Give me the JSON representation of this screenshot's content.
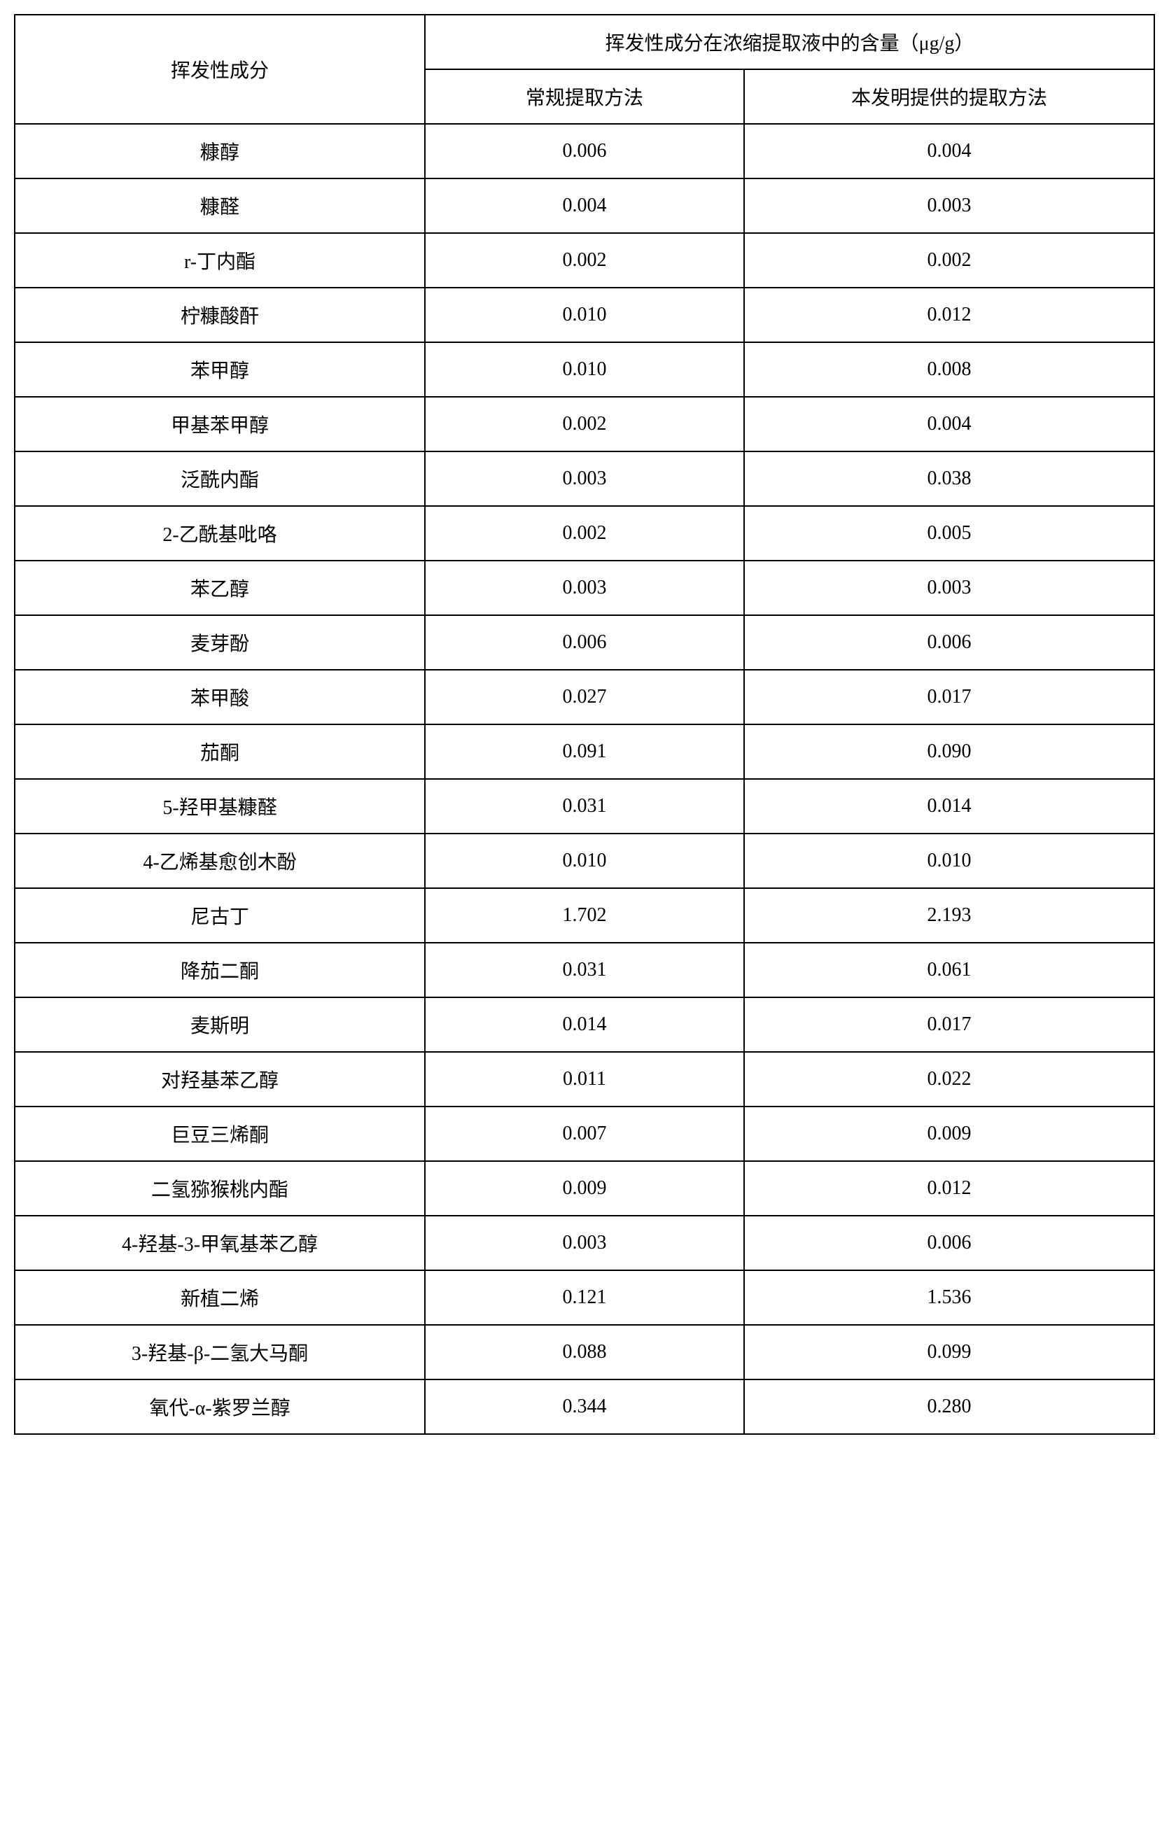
{
  "table": {
    "header": {
      "component_label": "挥发性成分",
      "content_label": "挥发性成分在浓缩提取液中的含量（μg/g）",
      "method1_label": "常规提取方法",
      "method2_label": "本发明提供的提取方法"
    },
    "rows": [
      {
        "name": "糠醇",
        "v1": "0.006",
        "v2": "0.004"
      },
      {
        "name": "糠醛",
        "v1": "0.004",
        "v2": "0.003"
      },
      {
        "name": "r-丁内酯",
        "v1": "0.002",
        "v2": "0.002"
      },
      {
        "name": "柠糠酸酐",
        "v1": "0.010",
        "v2": "0.012"
      },
      {
        "name": "苯甲醇",
        "v1": "0.010",
        "v2": "0.008"
      },
      {
        "name": "甲基苯甲醇",
        "v1": "0.002",
        "v2": "0.004"
      },
      {
        "name": "泛酰内酯",
        "v1": "0.003",
        "v2": "0.038"
      },
      {
        "name": "2-乙酰基吡咯",
        "v1": "0.002",
        "v2": "0.005"
      },
      {
        "name": "苯乙醇",
        "v1": "0.003",
        "v2": "0.003"
      },
      {
        "name": "麦芽酚",
        "v1": "0.006",
        "v2": "0.006"
      },
      {
        "name": "苯甲酸",
        "v1": "0.027",
        "v2": "0.017"
      },
      {
        "name": "茄酮",
        "v1": "0.091",
        "v2": "0.090"
      },
      {
        "name": "5-羟甲基糠醛",
        "v1": "0.031",
        "v2": "0.014"
      },
      {
        "name": "4-乙烯基愈创木酚",
        "v1": "0.010",
        "v2": "0.010"
      },
      {
        "name": "尼古丁",
        "v1": "1.702",
        "v2": "2.193"
      },
      {
        "name": "降茄二酮",
        "v1": "0.031",
        "v2": "0.061"
      },
      {
        "name": "麦斯明",
        "v1": "0.014",
        "v2": "0.017"
      },
      {
        "name": "对羟基苯乙醇",
        "v1": "0.011",
        "v2": "0.022"
      },
      {
        "name": "巨豆三烯酮",
        "v1": "0.007",
        "v2": "0.009"
      },
      {
        "name": "二氢猕猴桃内酯",
        "v1": "0.009",
        "v2": "0.012"
      },
      {
        "name": "4-羟基-3-甲氧基苯乙醇",
        "v1": "0.003",
        "v2": "0.006"
      },
      {
        "name": "新植二烯",
        "v1": "0.121",
        "v2": "1.536"
      },
      {
        "name": "3-羟基-β-二氢大马酮",
        "v1": "0.088",
        "v2": "0.099"
      },
      {
        "name": "氧代-α-紫罗兰醇",
        "v1": "0.344",
        "v2": "0.280"
      }
    ]
  }
}
